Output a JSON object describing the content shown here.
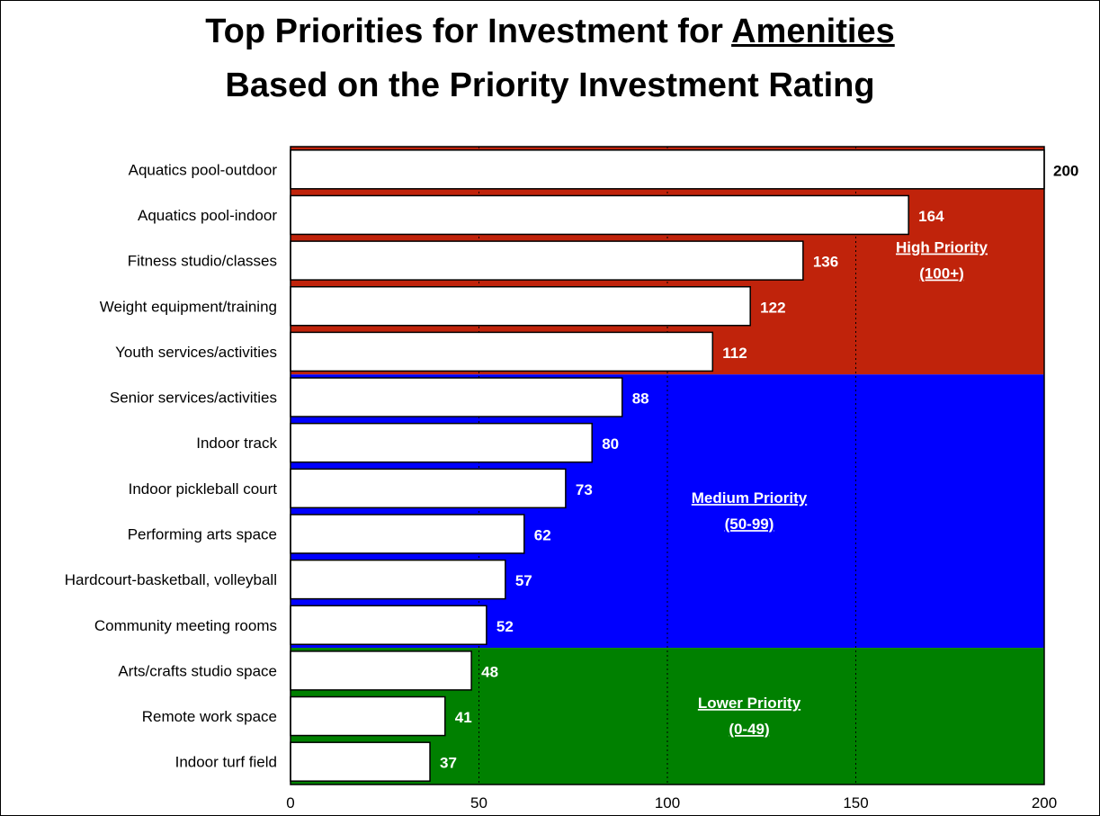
{
  "title": {
    "line1_prefix": "Top Priorities for Investment for ",
    "line1_emphasis": "Amenities",
    "line2": "Based on the Priority Investment Rating"
  },
  "chart_data": {
    "type": "bar",
    "orientation": "horizontal",
    "title": "Top Priorities for Investment for Amenities Based on the Priority Investment Rating",
    "categories": [
      "Aquatics pool-outdoor",
      "Aquatics pool-indoor",
      "Fitness studio/classes",
      "Weight equipment/training",
      "Youth services/activities",
      "Senior services/activities",
      "Indoor track",
      "Indoor pickleball court",
      "Performing arts space",
      "Hardcourt-basketball, volleyball",
      "Community meeting rooms",
      "Arts/crafts studio space",
      "Remote work space",
      "Indoor turf field"
    ],
    "values": [
      200,
      164,
      136,
      122,
      112,
      88,
      80,
      73,
      62,
      57,
      52,
      48,
      41,
      37
    ],
    "xlim": [
      0,
      200
    ],
    "xticks": [
      0,
      50,
      100,
      150,
      200
    ],
    "grid": "vertical dotted",
    "bar_color": "#ffffff",
    "bands": [
      {
        "label": "High Priority",
        "range_label": "(100+)",
        "color": "#c0230b",
        "first": 0,
        "last": 4
      },
      {
        "label": "Medium Priority",
        "range_label": "(50-99)",
        "color": "#0000ff",
        "first": 5,
        "last": 10
      },
      {
        "label": "Lower Priority",
        "range_label": "(0-49)",
        "color": "#008000",
        "first": 11,
        "last": 13
      }
    ]
  }
}
